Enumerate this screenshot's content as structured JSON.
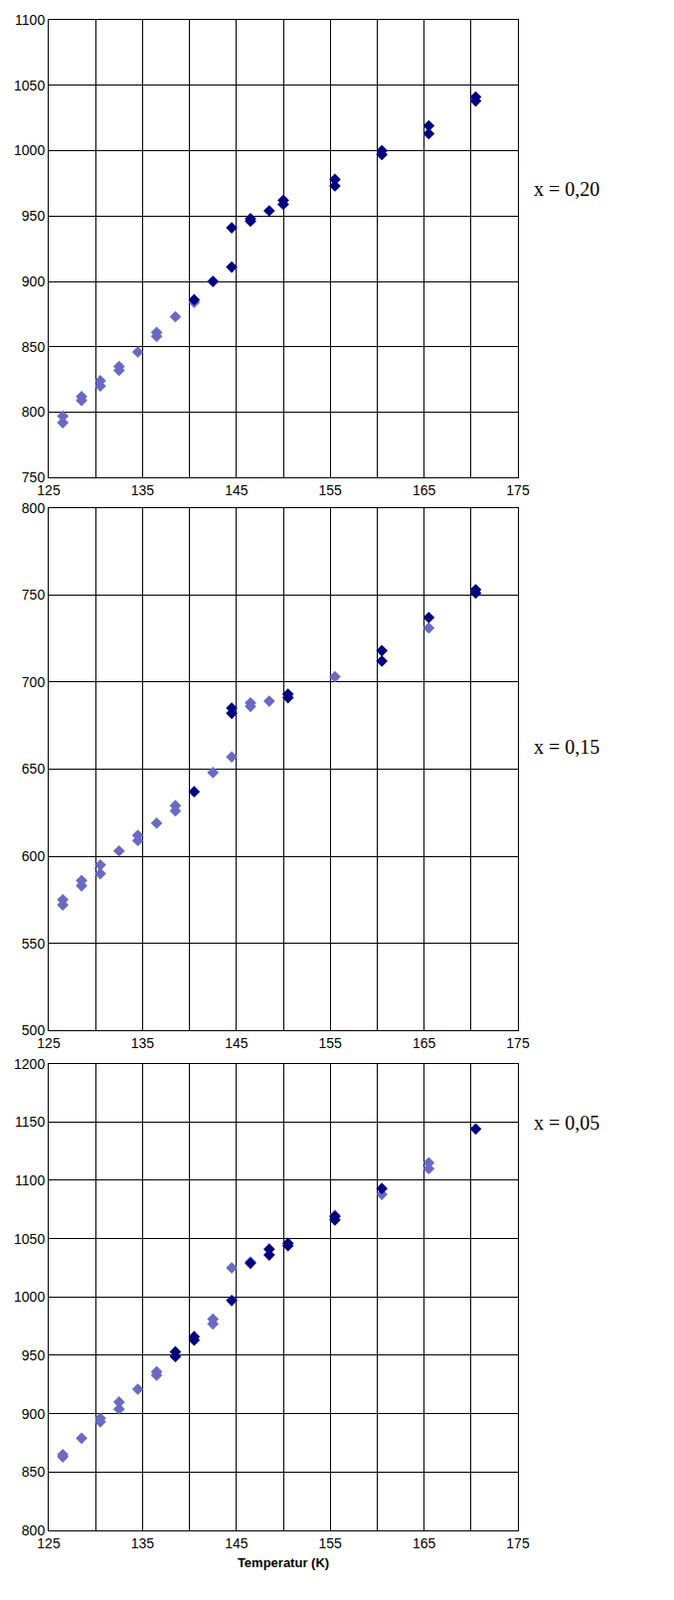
{
  "chart_data": [
    {
      "type": "scatter",
      "marker": "diamond",
      "grid": true,
      "annotations": [
        "x = 0,20"
      ],
      "xlim": [
        125,
        175
      ],
      "xticks": [
        125,
        135,
        145,
        155,
        165,
        175
      ],
      "ylim": [
        750,
        1100
      ],
      "yticks": [
        750,
        800,
        850,
        900,
        950,
        1000,
        1050,
        1100
      ],
      "series": [
        {
          "color": "#6a6ac4",
          "x": [
            126.5,
            126.5,
            128.5,
            128.5,
            130.5,
            130.5,
            132.5,
            132.5,
            134.5,
            136.5,
            136.5,
            138.5,
            140.5,
            142.5
          ],
          "values": [
            792,
            797,
            809,
            812,
            820,
            824,
            832,
            835,
            846,
            858,
            861,
            873,
            884,
            900
          ]
        },
        {
          "color": "#000080",
          "x": [
            140.5,
            142.5,
            144.5,
            144.5,
            146.5,
            146.5,
            148.5,
            150,
            150,
            155.5,
            155.5,
            160.5,
            160.5,
            165.5,
            165.5,
            170.5,
            170.5
          ],
          "values": [
            886,
            900,
            911,
            941,
            946,
            948,
            954,
            959,
            962,
            973,
            978,
            997,
            1000,
            1013,
            1019,
            1038,
            1041
          ]
        }
      ]
    },
    {
      "type": "scatter",
      "marker": "diamond",
      "grid": true,
      "annotations": [
        "x = 0,15"
      ],
      "xlim": [
        125,
        175
      ],
      "xticks": [
        125,
        135,
        145,
        155,
        165,
        175
      ],
      "ylim": [
        500,
        800
      ],
      "yticks": [
        500,
        550,
        600,
        650,
        700,
        750,
        800
      ],
      "series": [
        {
          "color": "#6a6ac4",
          "x": [
            126.5,
            126.5,
            128.5,
            128.5,
            130.5,
            130.5,
            132.5,
            134.5,
            134.5,
            136.5,
            138.5,
            138.5,
            142.5,
            144.5,
            146.5,
            146.5,
            148.5,
            155.5,
            165.5
          ],
          "values": [
            572,
            575,
            583,
            586,
            590,
            595,
            603,
            609,
            612,
            619,
            626,
            629,
            648,
            657,
            686,
            688,
            689,
            703,
            731
          ]
        },
        {
          "color": "#000080",
          "x": [
            140.5,
            144.5,
            144.5,
            150.5,
            150.5,
            160.5,
            160.5,
            165.5,
            170.5,
            170.5
          ],
          "values": [
            637,
            682,
            685,
            691,
            693,
            712,
            718,
            737,
            751,
            753
          ]
        }
      ]
    },
    {
      "type": "scatter",
      "marker": "diamond",
      "grid": true,
      "annotations": [
        "x = 0,05"
      ],
      "xlabel": "Temperatur (K)",
      "xlim": [
        125,
        175
      ],
      "xticks": [
        125,
        135,
        145,
        155,
        165,
        175
      ],
      "ylim": [
        800,
        1200
      ],
      "yticks": [
        800,
        850,
        900,
        950,
        1000,
        1050,
        1100,
        1150,
        1200
      ],
      "series": [
        {
          "color": "#6a6ac4",
          "x": [
            126.5,
            126.5,
            128.5,
            130.5,
            130.5,
            132.5,
            132.5,
            134.5,
            136.5,
            136.5,
            142.5,
            142.5,
            144.5,
            146.5,
            155.5,
            160.5,
            165.5,
            165.5
          ],
          "values": [
            863,
            865,
            879,
            893,
            896,
            904,
            910,
            921,
            933,
            936,
            977,
            981,
            1025,
            1030,
            1070,
            1088,
            1110,
            1115
          ]
        },
        {
          "color": "#000080",
          "x": [
            138.5,
            138.5,
            140.5,
            140.5,
            144.5,
            146.5,
            148.5,
            148.5,
            150.5,
            150.5,
            155.5,
            155.5,
            160.5,
            170.5
          ],
          "values": [
            949,
            953,
            963,
            966,
            997,
            1029,
            1036,
            1041,
            1044,
            1046,
            1066,
            1069,
            1093,
            1144
          ]
        }
      ]
    }
  ]
}
